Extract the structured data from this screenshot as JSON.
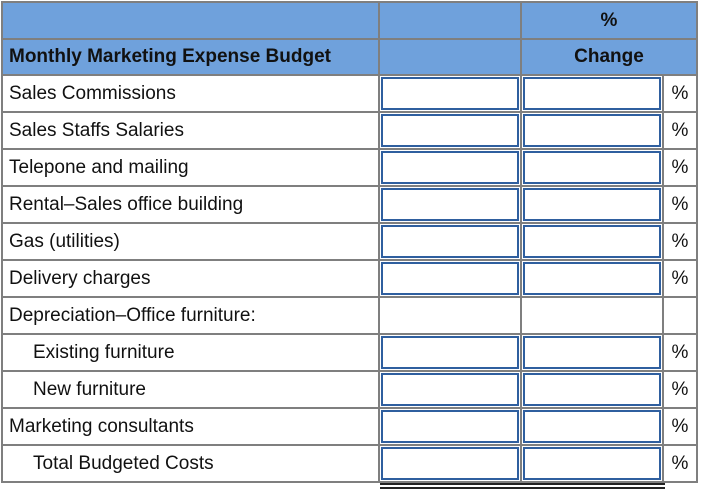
{
  "header": {
    "row1": {
      "label": "",
      "value": "",
      "change": "%"
    },
    "row2": {
      "label": "Monthly Marketing Expense Budget",
      "value": "",
      "change": "Change"
    }
  },
  "colors": {
    "header_bg": "#6fa1dc",
    "input_border": "#2f5f9f",
    "grid": "#7f7f7f"
  },
  "rows": [
    {
      "label": "Sales Commissions",
      "indent": false,
      "has_inputs": true,
      "amount": "",
      "pct_change": "",
      "pct_symbol": "%"
    },
    {
      "label": "Sales Staffs Salaries",
      "indent": false,
      "has_inputs": true,
      "amount": "",
      "pct_change": "",
      "pct_symbol": "%"
    },
    {
      "label": "Telepone and mailing",
      "indent": false,
      "has_inputs": true,
      "amount": "",
      "pct_change": "",
      "pct_symbol": "%"
    },
    {
      "label": "Rental–Sales office building",
      "indent": false,
      "has_inputs": true,
      "amount": "",
      "pct_change": "",
      "pct_symbol": "%"
    },
    {
      "label": "Gas (utilities)",
      "indent": false,
      "has_inputs": true,
      "amount": "",
      "pct_change": "",
      "pct_symbol": "%"
    },
    {
      "label": "Delivery charges",
      "indent": false,
      "has_inputs": true,
      "amount": "",
      "pct_change": "",
      "pct_symbol": "%"
    },
    {
      "label": "Depreciation–Office furniture:",
      "indent": false,
      "has_inputs": false,
      "amount": "",
      "pct_change": "",
      "pct_symbol": ""
    },
    {
      "label": "Existing furniture",
      "indent": true,
      "has_inputs": true,
      "amount": "",
      "pct_change": "",
      "pct_symbol": "%"
    },
    {
      "label": "New furniture",
      "indent": true,
      "has_inputs": true,
      "amount": "",
      "pct_change": "",
      "pct_symbol": "%"
    },
    {
      "label": "Marketing consultants",
      "indent": false,
      "has_inputs": true,
      "amount": "",
      "pct_change": "",
      "pct_symbol": "%"
    },
    {
      "label": "Total Budgeted Costs",
      "indent": true,
      "has_inputs": true,
      "amount": "",
      "pct_change": "",
      "pct_symbol": "%"
    }
  ]
}
